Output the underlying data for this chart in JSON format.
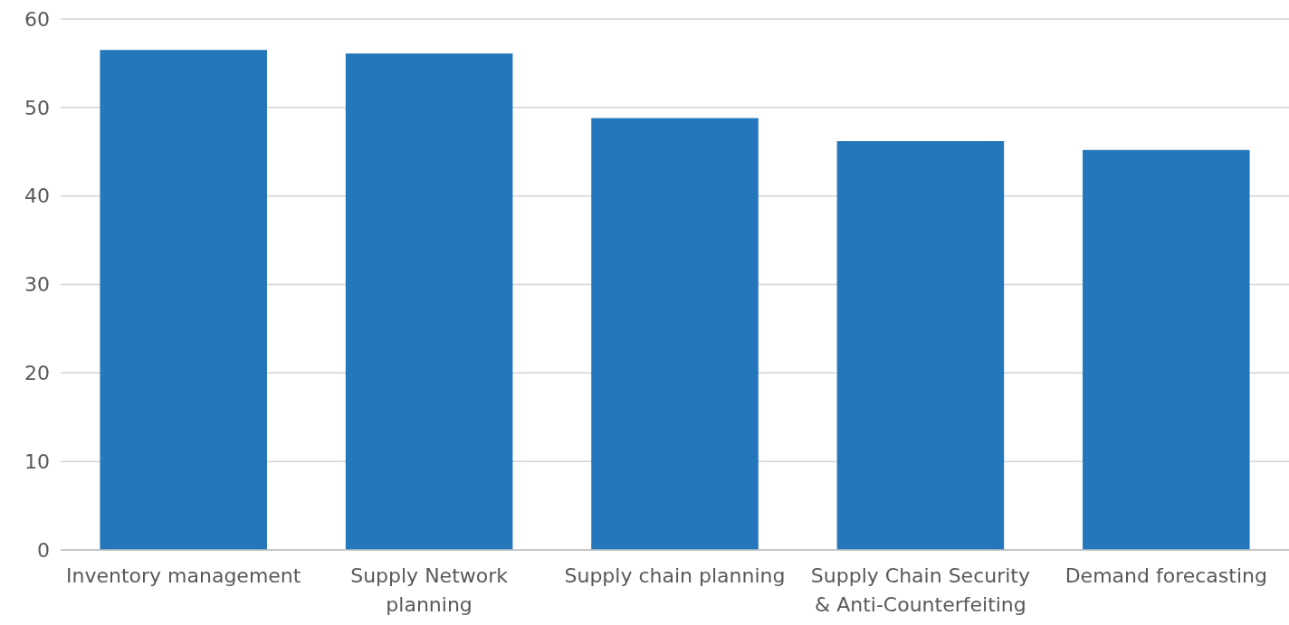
{
  "chart_data": {
    "type": "bar",
    "categories": [
      "Inventory management",
      "Supply Network planning",
      "Supply chain planning",
      "Supply Chain Security & Anti-Counterfeiting",
      "Demand forecasting"
    ],
    "values": [
      56.5,
      56.1,
      48.8,
      46.2,
      45.2
    ],
    "color": "#2477bb",
    "ylim": [
      0,
      60
    ],
    "yticks": [
      0,
      10,
      20,
      30,
      40,
      50,
      60
    ],
    "grid": "y"
  }
}
